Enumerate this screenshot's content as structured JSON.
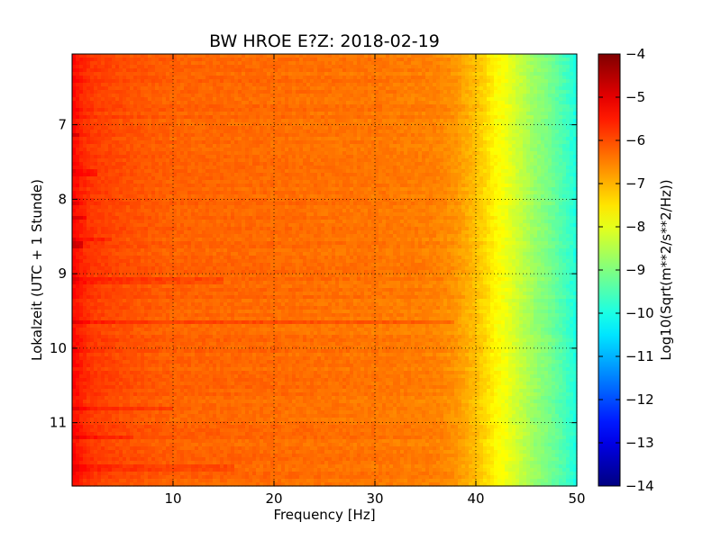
{
  "chart_data": {
    "type": "heatmap",
    "title": "BW HROE E?Z: 2018-02-19",
    "xlabel": "Frequency [Hz]",
    "ylabel": "Lokalzeit (UTC + 1 Stunde)",
    "xlim": [
      0,
      50
    ],
    "ylim": [
      11.85,
      6.05
    ],
    "y_inverted": true,
    "grid": true,
    "xticks": [
      10,
      20,
      30,
      40,
      50
    ],
    "xtick_labels": [
      "10",
      "20",
      "30",
      "40",
      "50"
    ],
    "yticks": [
      7,
      8,
      9,
      10,
      11
    ],
    "ytick_labels": [
      "7",
      "8",
      "9",
      "10",
      "11"
    ],
    "colormap": "jet",
    "colorbar": {
      "label": "Log10(Sqrt(m**2/s**2/Hz))",
      "range": [
        -14,
        -4
      ],
      "ticks": [
        -4,
        -5,
        -6,
        -7,
        -8,
        -9,
        -10,
        -11,
        -12,
        -13,
        -14
      ],
      "tick_labels": [
        "−4",
        "−5",
        "−6",
        "−7",
        "−8",
        "−9",
        "−10",
        "−11",
        "−12",
        "−13",
        "−14"
      ]
    },
    "spectrum_profile": {
      "frequency_hz": [
        0,
        0.5,
        1,
        2,
        5,
        10,
        20,
        30,
        36,
        38,
        40,
        41,
        42,
        43,
        44,
        45,
        46,
        47,
        48,
        49,
        50
      ],
      "log10_value": [
        -5.3,
        -5.4,
        -5.6,
        -5.8,
        -6.0,
        -6.2,
        -6.3,
        -6.4,
        -6.5,
        -6.7,
        -7.1,
        -7.4,
        -7.7,
        -7.9,
        -8.2,
        -8.5,
        -8.8,
        -9.0,
        -9.3,
        -9.6,
        -10.0
      ]
    },
    "high_energy_bands": [
      {
        "time": 7.15,
        "fmax": 0.8,
        "delta": 0.5
      },
      {
        "time": 7.65,
        "fmax": 2.5,
        "delta": 0.3
      },
      {
        "time": 8.05,
        "fmax": 0.8,
        "delta": 0.4
      },
      {
        "time": 8.25,
        "fmax": 1.5,
        "delta": 0.45
      },
      {
        "time": 8.55,
        "fmax": 4.0,
        "delta": 0.35
      },
      {
        "time": 8.62,
        "fmax": 1.2,
        "delta": 0.55
      },
      {
        "time": 9.1,
        "fmax": 15.0,
        "delta": 0.25
      },
      {
        "time": 9.65,
        "fmax": 38.0,
        "delta": 0.35
      },
      {
        "time": 10.8,
        "fmax": 10.0,
        "delta": 0.3
      },
      {
        "time": 11.2,
        "fmax": 6.0,
        "delta": 0.3
      },
      {
        "time": 11.6,
        "fmax": 16.0,
        "delta": 0.3
      }
    ]
  }
}
